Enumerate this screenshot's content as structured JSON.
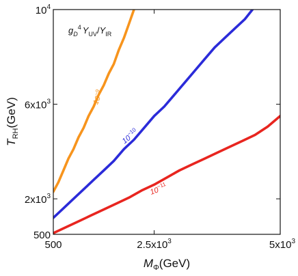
{
  "chart_data": {
    "type": "line",
    "annotation": {
      "g": "g",
      "gsub": "D",
      "gexp": "4",
      "y1": "Y",
      "y1sub": "UV",
      "slash": "/",
      "y2": "Y",
      "y2sub": "IR"
    },
    "xlabel": {
      "main": "M",
      "sub": "Φ",
      "unit": "(GeV)"
    },
    "ylabel": {
      "main": "T",
      "sub": "RH",
      "unit": "(GeV)"
    },
    "xlim": [
      500,
      5000
    ],
    "ylim": [
      500,
      10000
    ],
    "grid": false,
    "legend": "none",
    "x_ticks": [
      {
        "value": 500,
        "mantissa": "500",
        "exp": ""
      },
      {
        "value": 2500,
        "mantissa": "2.5x10",
        "exp": "3"
      },
      {
        "value": 5000,
        "mantissa": "5x10",
        "exp": "3"
      }
    ],
    "y_ticks": [
      {
        "value": 500,
        "mantissa": "500",
        "exp": ""
      },
      {
        "value": 2000,
        "mantissa": "2x10",
        "exp": "3"
      },
      {
        "value": 6000,
        "mantissa": "6x10",
        "exp": "3"
      },
      {
        "value": 10000,
        "mantissa": "10",
        "exp": "4"
      }
    ],
    "series": [
      {
        "label_main": "10",
        "label_exp": "−9",
        "color": "#f7941d",
        "label_at": [
          1430,
          6250
        ],
        "label_angle": -68,
        "x": [
          500,
          600,
          700,
          800,
          900,
          1000,
          1100,
          1200,
          1300,
          1400,
          1500,
          1600,
          1700,
          1800,
          1900,
          2000,
          2100
        ],
        "y": [
          2300,
          2700,
          3200,
          3700,
          4100,
          4600,
          5000,
          5500,
          5900,
          6400,
          6800,
          7300,
          7700,
          8300,
          8800,
          9400,
          10000
        ]
      },
      {
        "label_main": "10",
        "label_exp": "−10",
        "color": "#2b2bd9",
        "label_at": [
          2050,
          4550
        ],
        "label_angle": -38,
        "x": [
          500,
          700,
          900,
          1100,
          1300,
          1500,
          1700,
          1900,
          2100,
          2300,
          2500,
          2700,
          2900,
          3100,
          3300,
          3500,
          3700,
          3900,
          4100,
          4300,
          4450
        ],
        "y": [
          1200,
          1600,
          2000,
          2400,
          2800,
          3200,
          3600,
          4100,
          4500,
          5000,
          5500,
          5900,
          6400,
          6900,
          7400,
          7900,
          8400,
          8800,
          9200,
          9600,
          10000
        ]
      },
      {
        "label_main": "10",
        "label_exp": "−11",
        "color": "#e8251f",
        "label_at": [
          2600,
          2300
        ],
        "label_angle": -20,
        "x": [
          500,
          750,
          1000,
          1250,
          1500,
          1750,
          2000,
          2250,
          2500,
          2750,
          3000,
          3250,
          3500,
          3750,
          4000,
          4250,
          4500,
          4750,
          5000
        ],
        "y": [
          550,
          800,
          1050,
          1300,
          1550,
          1800,
          2050,
          2350,
          2600,
          2900,
          3200,
          3450,
          3700,
          3950,
          4200,
          4450,
          4700,
          5050,
          5500
        ]
      }
    ]
  }
}
